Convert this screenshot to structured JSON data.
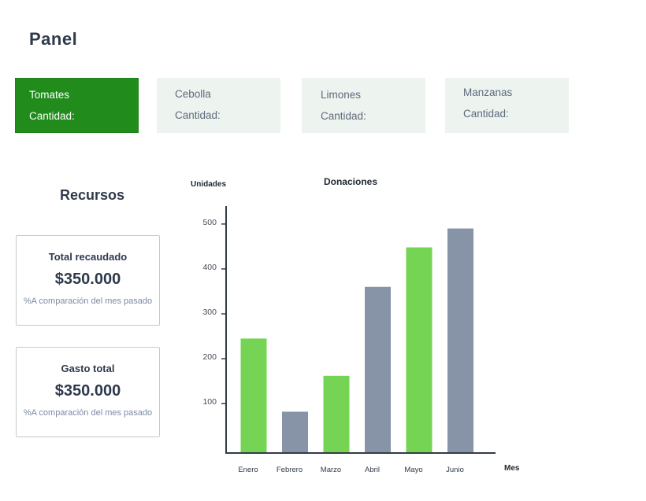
{
  "header": {
    "title": "Panel"
  },
  "cards": [
    {
      "name": "Tomates",
      "quantity_label": "Cantidad:"
    },
    {
      "name": "Cebolla",
      "quantity_label": "Cantidad:"
    },
    {
      "name": "Limones",
      "quantity_label": "Cantidad:"
    },
    {
      "name": "Manzanas",
      "quantity_label": "Cantidad:"
    }
  ],
  "resources": {
    "title": "Recursos",
    "total": {
      "label": "Total recaudado",
      "value": "$350.000",
      "note": "%A comparación del mes pasado"
    },
    "expense": {
      "label": "Gasto total",
      "value": "$350.000",
      "note": "%A comparación del mes pasado"
    }
  },
  "colors": {
    "active_card": "#218c1c",
    "card_bg": "#edf3ee",
    "bar_green": "#76d455",
    "bar_gray": "#8793a6",
    "axis": "#333b47"
  },
  "chart_data": {
    "type": "bar",
    "title": "Donaciones",
    "ylabel": "Unidades",
    "xlabel": "Mes",
    "categories": [
      "Enero",
      "Febrero",
      "Marzo",
      "Abril",
      "Mayo",
      "Junio"
    ],
    "values": [
      245,
      82,
      162,
      360,
      448,
      490
    ],
    "bar_colors": [
      "#76d455",
      "#8793a6",
      "#76d455",
      "#8793a6",
      "#76d455",
      "#8793a6"
    ],
    "yticks": [
      100,
      200,
      300,
      400,
      500
    ],
    "ylim": [
      -10,
      540
    ],
    "grid": false,
    "legend": "none"
  }
}
